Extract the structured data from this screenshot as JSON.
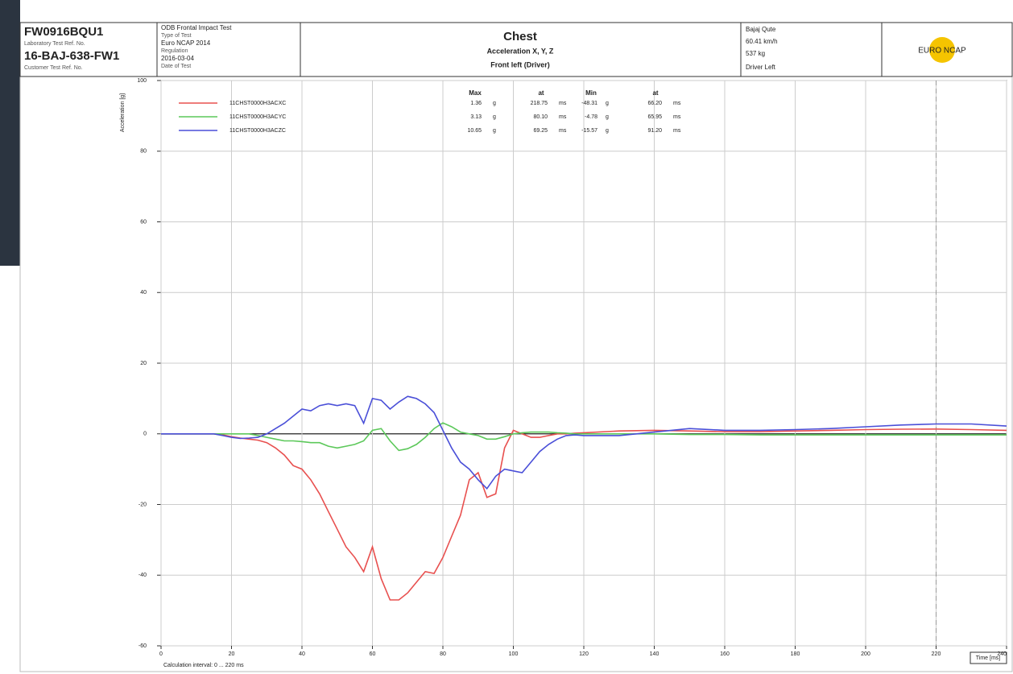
{
  "header": {
    "lab_ref": "FW0916BQU1",
    "lab_ref_label": "Laboratory Test Ref. No.",
    "cust_ref": "16-BAJ-638-FW1",
    "cust_ref_label": "Customer Test Ref. No.",
    "test": "ODB Frontal Impact Test",
    "test_label": "Type of Test",
    "regulation": "Euro NCAP 2014",
    "regulation_label": "Regulation",
    "date": "2016-03-04",
    "date_label": "Date of Test",
    "vehicle": "Bajaj Qute",
    "speed": "60.41 km/h",
    "mass": "537 kg",
    "position": "Driver Left",
    "logo": "EURO NCAP"
  },
  "chart_data": {
    "type": "line",
    "title": "Chest",
    "subtitle": "Acceleration  X, Y, Z",
    "subtitle2": "Front left (Driver)",
    "y_label": "Acceleration [g]",
    "x_label": "Time [ms]",
    "note": "Calculation interval: 0 ... 220 ms",
    "xlim": [
      0,
      240
    ],
    "xticks": [
      0,
      20,
      40,
      60,
      80,
      100,
      120,
      140,
      160,
      180,
      200,
      220,
      240
    ],
    "ylim": [
      -60,
      100
    ],
    "yticks": [
      100,
      80,
      60,
      40,
      20,
      0,
      -20,
      -40,
      -60
    ],
    "grid": true,
    "vline": 220,
    "x": [
      0,
      2.5,
      5,
      7.5,
      10,
      12.5,
      15,
      17.5,
      20,
      22.5,
      25,
      27.5,
      30,
      32.5,
      35,
      37.5,
      40,
      42.5,
      45,
      47.5,
      50,
      52.5,
      55,
      57.5,
      60,
      62.5,
      65,
      67.5,
      70,
      72.5,
      75,
      77.5,
      80,
      82.5,
      85,
      87.5,
      90,
      92.5,
      95,
      97.5,
      100,
      102.5,
      105,
      107.5,
      110,
      112.5,
      115,
      117.5,
      120,
      130,
      140,
      150,
      160,
      170,
      180,
      190,
      200,
      210,
      220,
      230,
      240
    ],
    "series": [
      {
        "name": "11CHST0000H3ACXC",
        "color": "#e8504f",
        "values": [
          0,
          0,
          0,
          0,
          0,
          0,
          0,
          -0.3,
          -0.8,
          -1.2,
          -1.5,
          -1.8,
          -2.5,
          -4,
          -6,
          -9,
          -10,
          -13,
          -17,
          -22,
          -27,
          -32,
          -35,
          -39,
          -32,
          -41,
          -47,
          -47,
          -45,
          -42,
          -39,
          -39.5,
          -35,
          -29,
          -23,
          -13,
          -11,
          -18,
          -17,
          -4,
          1,
          0,
          -1,
          -1,
          -0.5,
          0,
          0,
          0.2,
          0.3,
          0.8,
          1,
          0.8,
          0.6,
          0.6,
          0.8,
          1,
          1.2,
          1.3,
          1.36,
          1.2,
          1.0
        ],
        "stats": [
          "1.36",
          "218.75",
          "-48.31",
          "66.20"
        ]
      },
      {
        "name": "11CHST0000H3ACYC",
        "color": "#5cc85a",
        "values": [
          0,
          0,
          0,
          0,
          0,
          0,
          0,
          0,
          0,
          0,
          0,
          -0.5,
          -1,
          -1.5,
          -2,
          -2,
          -2.2,
          -2.5,
          -2.5,
          -3.5,
          -4,
          -3.5,
          -3,
          -2,
          1,
          1.5,
          -2,
          -4.7,
          -4.2,
          -3,
          -1,
          1.5,
          3.1,
          2,
          0.5,
          0,
          -0.5,
          -1.5,
          -1.5,
          -0.8,
          0,
          0.3,
          0.5,
          0.5,
          0.5,
          0.3,
          0.2,
          0,
          0,
          0,
          0,
          -0.2,
          -0.2,
          -0.3,
          -0.3,
          -0.3,
          -0.3,
          -0.3,
          -0.3,
          -0.3,
          -0.3
        ],
        "stats": [
          "3.13",
          "80.10",
          "-4.78",
          "65.95"
        ]
      },
      {
        "name": "11CHST0000H3ACZC",
        "color": "#4a4fd8",
        "values": [
          0,
          0,
          0,
          0,
          0,
          0,
          0,
          -0.5,
          -1,
          -1.3,
          -1.2,
          -1,
          0,
          1.5,
          3,
          5,
          7,
          6.5,
          8,
          8.5,
          8,
          8.5,
          8,
          3,
          10,
          9.5,
          7,
          9,
          10.6,
          10,
          8.5,
          6,
          1,
          -4,
          -8,
          -10,
          -13,
          -15.5,
          -12,
          -10,
          -10.5,
          -11,
          -8,
          -5,
          -3,
          -1.5,
          -0.5,
          -0.3,
          -0.5,
          -0.5,
          0.5,
          1.5,
          1,
          1,
          1.2,
          1.5,
          2,
          2.5,
          2.8,
          2.8,
          2.2
        ],
        "stats": [
          "10.65",
          "69.25",
          "-15.57",
          "91.20"
        ]
      }
    ],
    "stats_columns": [
      "Max",
      "at",
      "Min",
      "at"
    ],
    "stats_units": [
      "g",
      "ms",
      "g",
      "ms"
    ]
  }
}
